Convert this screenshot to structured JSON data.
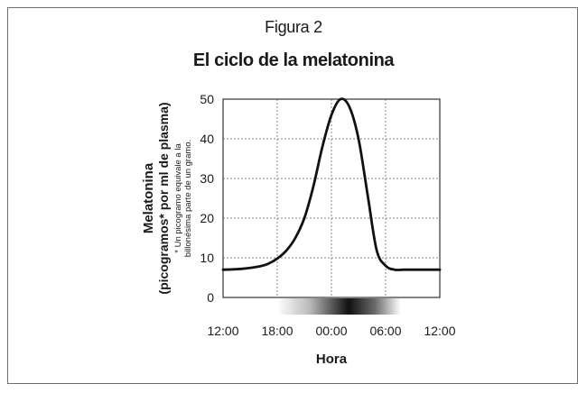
{
  "figure_label": "Figura 2",
  "chart_data": {
    "type": "line",
    "title": "El ciclo de la melatonina",
    "xlabel": "Hora",
    "ylabel_line1": "Melatonina",
    "ylabel_line2": "(picogramos* por ml de plasma)",
    "ylabel_note_line1": "* Un picogramo equivale a la",
    "ylabel_note_line2": "billonésima parte de un gramo.",
    "x_ticks": [
      "12:00",
      "18:00",
      "00:00",
      "06:00",
      "12:00"
    ],
    "y_ticks": [
      "0",
      "10",
      "20",
      "30",
      "40",
      "50"
    ],
    "ylim": [
      0,
      50
    ],
    "xlim_hours": [
      0,
      24
    ],
    "grid": true,
    "day_night_band": "gradient light-to-dark centred near 02:00",
    "colors": {
      "line": "#111111",
      "grid": "#888888",
      "frame": "#6f6f6f"
    },
    "series": [
      {
        "x": [
          0,
          2,
          4,
          5,
          6,
          7,
          8,
          9,
          10,
          11,
          12,
          13,
          14,
          15,
          16,
          17,
          18,
          19,
          20,
          21,
          22,
          23,
          24
        ],
        "values": [
          7,
          7.2,
          7.8,
          8.5,
          9.8,
          11.8,
          15,
          20,
          28,
          38,
          46,
          50,
          48,
          40,
          26,
          12,
          8,
          7,
          7,
          7,
          7,
          7,
          7
        ]
      }
    ]
  }
}
